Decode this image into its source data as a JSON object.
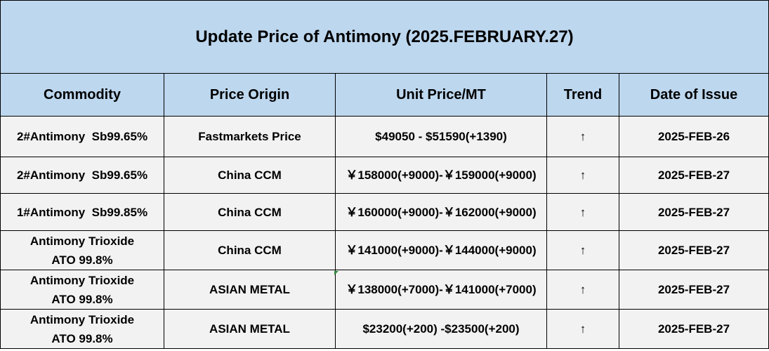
{
  "title": "Update Price of Antimony (2025.FEBRUARY.27)",
  "headers": [
    "Commodity",
    "Price Origin",
    "Unit Price/MT",
    "Trend",
    "Date of Issue"
  ],
  "trend_symbol": "↑",
  "rows": [
    {
      "commodity": "2#Antimony  Sb99.65%",
      "commodity_line2": "",
      "origin": "Fastmarkets Price",
      "price": "$49050 - $51590(+1390)",
      "trend": "↑",
      "date": "2025-FEB-26"
    },
    {
      "commodity": "2#Antimony  Sb99.65%",
      "commodity_line2": "",
      "origin": "China CCM",
      "price": "￥158000(+9000)-￥159000(+9000)",
      "trend": "↑",
      "date": "2025-FEB-27"
    },
    {
      "commodity": "1#Antimony  Sb99.85%",
      "commodity_line2": "",
      "origin": "China CCM",
      "price": "￥160000(+9000)-￥162000(+9000)",
      "trend": "↑",
      "date": "2025-FEB-27"
    },
    {
      "commodity": "Antimony Trioxide",
      "commodity_line2": "ATO 99.8%",
      "origin": "China CCM",
      "price": "￥141000(+9000)-￥144000(+9000)",
      "trend": "↑",
      "date": "2025-FEB-27"
    },
    {
      "commodity": "Antimony Trioxide",
      "commodity_line2": "ATO 99.8%",
      "origin": "ASIAN METAL",
      "price": "￥138000(+7000)-￥141000(+7000)",
      "trend": "↑",
      "date": "2025-FEB-27"
    },
    {
      "commodity": "Antimony Trioxide",
      "commodity_line2": "ATO 99.8%",
      "origin": "ASIAN METAL",
      "price": "$23200(+200) -$23500(+200)",
      "trend": "↑",
      "date": "2025-FEB-27"
    }
  ],
  "colors": {
    "header_bg": "#bdd7ee",
    "row_bg": "#f2f2f2",
    "border": "#000000"
  }
}
